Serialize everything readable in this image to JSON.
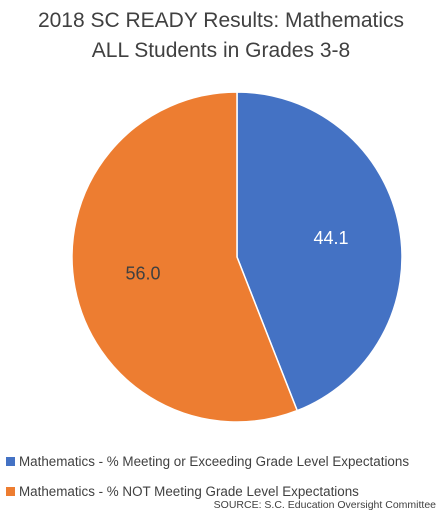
{
  "chart_data": {
    "type": "pie",
    "title": "2018 SC READY Results: Mathematics",
    "subtitle": "ALL Students in Grades 3-8",
    "slices": [
      {
        "name": "Mathematics - % Meeting or Exceeding Grade Level Expectations",
        "value": 44.1,
        "label": "44.1",
        "color": "#4472C4"
      },
      {
        "name": "Mathematics - % NOT Meeting Grade Level Expectations",
        "value": 56.0,
        "label": "56.0",
        "color": "#ED7D31"
      }
    ],
    "legend_position": "bottom-left"
  },
  "source": "SOURCE: S.C. Education Oversight Committee"
}
